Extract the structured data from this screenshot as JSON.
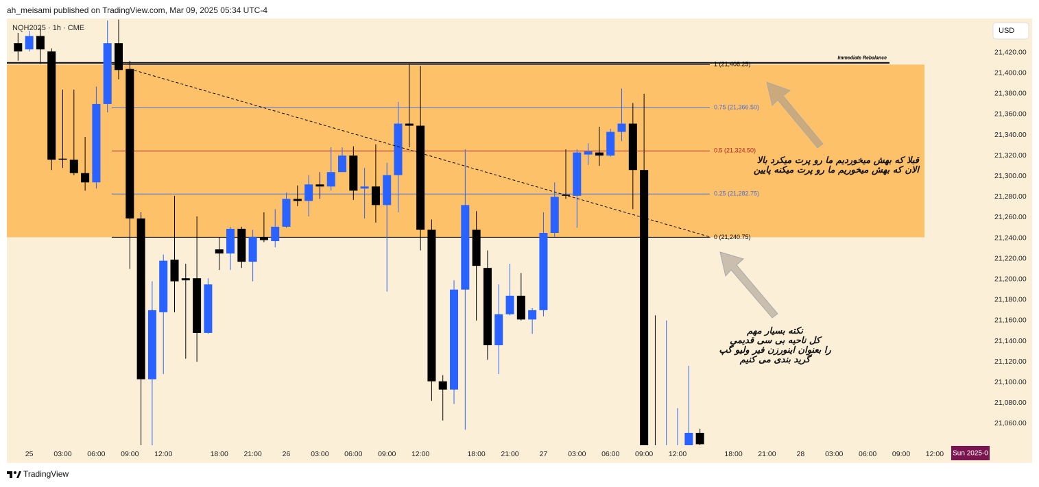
{
  "header": {
    "publisher": "ah_meisami published on TradingView.com, Mar 09, 2025 05:34 UTC-4",
    "symbol": "NQH2025 · 1h · CME",
    "currency": "USD"
  },
  "footer": {
    "brand": "TradingView"
  },
  "chart_data": {
    "type": "candlestick",
    "up_color": "#2962ff",
    "down_color": "#000000",
    "open": [
      21429,
      21423,
      21436,
      21421,
      21317,
      21316,
      21303,
      21294,
      21370,
      21429,
      21404,
      21259,
      21103,
      21168,
      21219,
      21201,
      21201,
      21148,
      21229,
      21225,
      21249,
      21217,
      21241,
      21237,
      21251,
      21278,
      21276,
      21292,
      21290,
      21304,
      21320,
      21288,
      21290,
      21272,
      21301,
      21351,
      21349,
      21248,
      21101,
      21093,
      21190,
      21248,
      21211,
      21136,
      21166,
      21184,
      21161,
      21170,
      21245,
      21282,
      21281,
      21321,
      21323,
      21320,
      21343,
      21351,
      21306,
      21010,
      21005,
      21015,
      21030,
      21051
    ],
    "high": [
      21439,
      21441,
      21444,
      21424,
      21384,
      21384,
      21338,
      21387,
      21451,
      21452,
      21412,
      21265,
      21198,
      21224,
      21281,
      21215,
      21261,
      21201,
      21241,
      21251,
      21251,
      21248,
      21265,
      21268,
      21284,
      21291,
      21301,
      21304,
      21328,
      21328,
      21329,
      21308,
      21331,
      21313,
      21372,
      21409,
      21407,
      21258,
      21107,
      21199,
      21326,
      21266,
      21228,
      21195,
      21215,
      21206,
      21172,
      21265,
      21294,
      21326,
      21326,
      21332,
      21348,
      21346,
      21385,
      21371,
      21380,
      21165,
      21160,
      21075,
      21116,
      21055
    ],
    "low": [
      21412,
      21421,
      21409,
      21306,
      21308,
      21301,
      21286,
      21288,
      21362,
      21394,
      21210,
      21035,
      21035,
      21108,
      21168,
      21123,
      21120,
      21147,
      21209,
      21209,
      21211,
      21198,
      21236,
      21231,
      21250,
      21271,
      21261,
      21278,
      21286,
      21304,
      21277,
      21259,
      21255,
      21188,
      21265,
      21328,
      21228,
      21082,
      21063,
      21079,
      21054,
      21160,
      21122,
      21108,
      21165,
      21160,
      21147,
      21164,
      21241,
      21278,
      21250,
      21311,
      21310,
      21319,
      21334,
      21268,
      21000,
      20990,
      20995,
      21000,
      21020,
      21030
    ],
    "close": [
      21421,
      21436,
      21423,
      21316,
      21316,
      21303,
      21294,
      21370,
      21429,
      21403,
      21259,
      21103,
      21170,
      21218,
      21198,
      21199,
      21148,
      21195,
      21225,
      21249,
      21217,
      21241,
      21238,
      21251,
      21278,
      21276,
      21292,
      21290,
      21304,
      21320,
      21286,
      21290,
      21272,
      21301,
      21351,
      21349,
      21248,
      21101,
      21093,
      21190,
      21272,
      21213,
      21136,
      21166,
      21184,
      21161,
      21170,
      21245,
      21280,
      21281,
      21323,
      21324,
      21320,
      21343,
      21351,
      21306,
      21010,
      21005,
      21015,
      21020,
      21051,
      21040
    ],
    "xlim": [
      -1,
      85.5
    ],
    "xticks": [
      {
        "value": 1,
        "label": "25"
      },
      {
        "value": 4,
        "label": "03:00"
      },
      {
        "value": 7,
        "label": "06:00"
      },
      {
        "value": 10,
        "label": "09:00"
      },
      {
        "value": 13,
        "label": "12:00"
      },
      {
        "value": 18,
        "label": "18:00"
      },
      {
        "value": 21,
        "label": "21:00"
      },
      {
        "value": 24,
        "label": "26"
      },
      {
        "value": 27,
        "label": "03:00"
      },
      {
        "value": 30,
        "label": "06:00"
      },
      {
        "value": 33,
        "label": "09:00"
      },
      {
        "value": 36,
        "label": "12:00"
      },
      {
        "value": 41,
        "label": "18:00"
      },
      {
        "value": 44,
        "label": "21:00"
      },
      {
        "value": 47,
        "label": "27"
      },
      {
        "value": 50,
        "label": "03:00"
      },
      {
        "value": 53,
        "label": "06:00"
      },
      {
        "value": 56,
        "label": "09:00"
      },
      {
        "value": 59,
        "label": "12:00"
      },
      {
        "value": 64,
        "label": "18:00"
      },
      {
        "value": 67,
        "label": "21:00"
      },
      {
        "value": 70,
        "label": "28"
      },
      {
        "value": 73,
        "label": "03:00"
      },
      {
        "value": 76,
        "label": "06:00"
      },
      {
        "value": 79,
        "label": "09:00"
      },
      {
        "value": 82,
        "label": "12:00"
      }
    ],
    "cursor_label": "Sun 2025-0",
    "ylim": [
      21039,
      21453
    ],
    "yticks": [
      {
        "value": 21420,
        "label": "21,420.00"
      },
      {
        "value": 21400,
        "label": "21,400.00"
      },
      {
        "value": 21380,
        "label": "21,380.00"
      },
      {
        "value": 21360,
        "label": "21,360.00"
      },
      {
        "value": 21340,
        "label": "21,340.00"
      },
      {
        "value": 21320,
        "label": "21,320.00"
      },
      {
        "value": 21300,
        "label": "21,300.00"
      },
      {
        "value": 21280,
        "label": "21,280.00"
      },
      {
        "value": 21260,
        "label": "21,260.00"
      },
      {
        "value": 21240,
        "label": "21,240.00"
      },
      {
        "value": 21220,
        "label": "21,220.00"
      },
      {
        "value": 21200,
        "label": "21,200.00"
      },
      {
        "value": 21180,
        "label": "21,180.00"
      },
      {
        "value": 21160,
        "label": "21,160.00"
      },
      {
        "value": 21140,
        "label": "21,140.00"
      },
      {
        "value": 21120,
        "label": "21,120.00"
      },
      {
        "value": 21100,
        "label": "21,100.00"
      },
      {
        "value": 21080,
        "label": "21,080.00"
      },
      {
        "value": 21060,
        "label": "21,060.00"
      }
    ],
    "zone_color": "#fdc16a",
    "fib_levels": [
      {
        "label": "1 (21,408.25)",
        "price": 21408.25,
        "color": "#000000"
      },
      {
        "label": "0.75 (21,366.50)",
        "price": 21366.5,
        "color": "#4a6fd6"
      },
      {
        "label": "0.5 (21,324.50)",
        "price": 21324.5,
        "color": "#b22222"
      },
      {
        "label": "0.25 (21,282.75)",
        "price": 21282.75,
        "color": "#4a6fd6"
      },
      {
        "label": "0 (21,240.75)",
        "price": 21240.75,
        "color": "#000000"
      }
    ],
    "rebalance": {
      "label": "Immediate Rebalance",
      "price": 21410
    },
    "trendline": {
      "x": [
        10,
        62
      ],
      "y": [
        21404,
        21240.75
      ]
    },
    "annotations": [
      [
        "قبلا که بهش میخوردیم ما رو پرت میکرد بالا",
        "الان که بهش میخوریم ما رو پرت میکنه پایین"
      ],
      [
        "نکته بسیار مهم",
        "کل ناحیه بی سی قدیمی",
        "را بعنوان اینورزن فیر ولیو گپ",
        "گرید بندی می کنیم"
      ]
    ]
  }
}
